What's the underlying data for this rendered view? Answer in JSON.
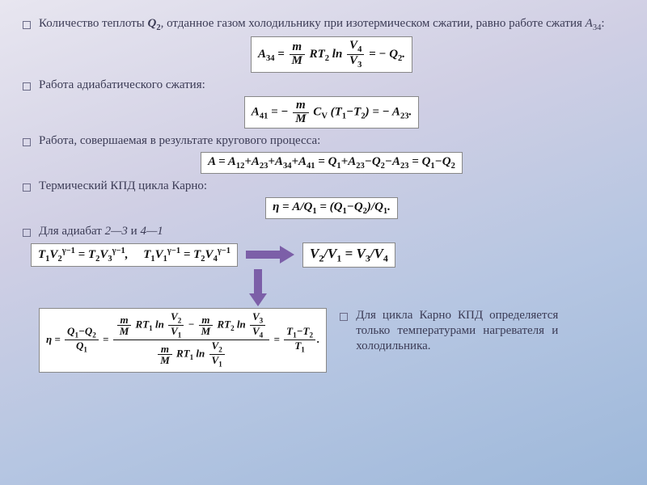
{
  "colors": {
    "accent_arrow": "#7c5fa8",
    "text": "#3b3b55",
    "eq_bg": "#ffffff",
    "eq_border": "#888888",
    "bg_gradient": [
      "#e8e6f0",
      "#d0cfe4",
      "#b6c6e2",
      "#9db8da"
    ]
  },
  "bullets": {
    "b1_prefix": "Количество теплоты ",
    "b1_q2": "Q",
    "b1_q2_sub": "2",
    "b1_mid": ", отданное газом холодильнику при изотермическом сжатии, равно работе сжатия ",
    "b1_a34": "A",
    "b1_a34_sub": "34",
    "b1_suffix": ":",
    "b2": "Работа адиабатического сжатия:",
    "b3": "Работа, совершаемая в результате кругового процесса:",
    "b4": "Термический КПД цикла Карно:",
    "b5_prefix": "Для адиабат ",
    "b5_r1": "2—3",
    "b5_and": " и ",
    "b5_r2": "4—1",
    "side": "Для цикла Карно КПД определяется только температурами нагревателя и холодильника."
  },
  "equations": {
    "eq1": "A<sub>34</sub> = <span class='frac'><span class='n'>m</span><span class='d'>M</span></span> RT<sub>2</sub> ln <span class='frac'><span class='n'>V<sub>4</sub></span><span class='d'>V<sub>3</sub></span></span> = − Q<sub>2</sub>.",
    "eq2": "A<sub>41</sub> = − <span class='frac'><span class='n'>m</span><span class='d'>M</span></span> C<sub>V</sub> (T<sub>1</sub>−T<sub>2</sub>) = − A<sub>23</sub>.",
    "eq3": "A = A<sub>12</sub>+A<sub>23</sub>+A<sub>34</sub>+A<sub>41</sub> = Q<sub>1</sub>+A<sub>23</sub>−Q<sub>2</sub>−A<sub>23</sub> = Q<sub>1</sub>−Q<sub>2</sub>",
    "eq4": "η = A/Q<sub>1</sub> = (Q<sub>1</sub>−Q<sub>2</sub>)/Q<sub>1</sub>.",
    "eq5a": "T<sub>1</sub>V<sub>2</sub><sup>γ−1</sup> = T<sub>2</sub>V<sub>3</sub><sup>γ−1</sup>,&nbsp;&nbsp;&nbsp;&nbsp; T<sub>1</sub>V<sub>1</sub><sup>γ−1</sup> = T<sub>2</sub>V<sub>4</sub><sup>γ−1</sup>",
    "eq5b": "V<sub>2</sub>/V<sub>1</sub> = V<sub>3</sub>/V<sub>4</sub>",
    "eq6": "η = <span class='frac'><span class='n'>Q<sub>1</sub>−Q<sub>2</sub></span><span class='d'>Q<sub>1</sub></span></span> = <span class='frac'><span class='n'><span class='frac'><span class='n'>m</span><span class='d'>M</span></span> RT<sub>1</sub> ln <span class='frac'><span class='n'>V<sub>2</sub></span><span class='d'>V<sub>1</sub></span></span> − <span class='frac'><span class='n'>m</span><span class='d'>M</span></span> RT<sub>2</sub> ln <span class='frac'><span class='n'>V<sub>3</sub></span><span class='d'>V<sub>4</sub></span></span></span><span class='d'><span class='frac'><span class='n'>m</span><span class='d'>M</span></span> RT<sub>1</sub> ln <span class='frac'><span class='n'>V<sub>2</sub></span><span class='d'>V<sub>1</sub></span></span></span></span> = <span class='frac'><span class='n'>T<sub>1</sub>−T<sub>2</sub></span><span class='d'>T<sub>1</sub></span></span>."
  }
}
